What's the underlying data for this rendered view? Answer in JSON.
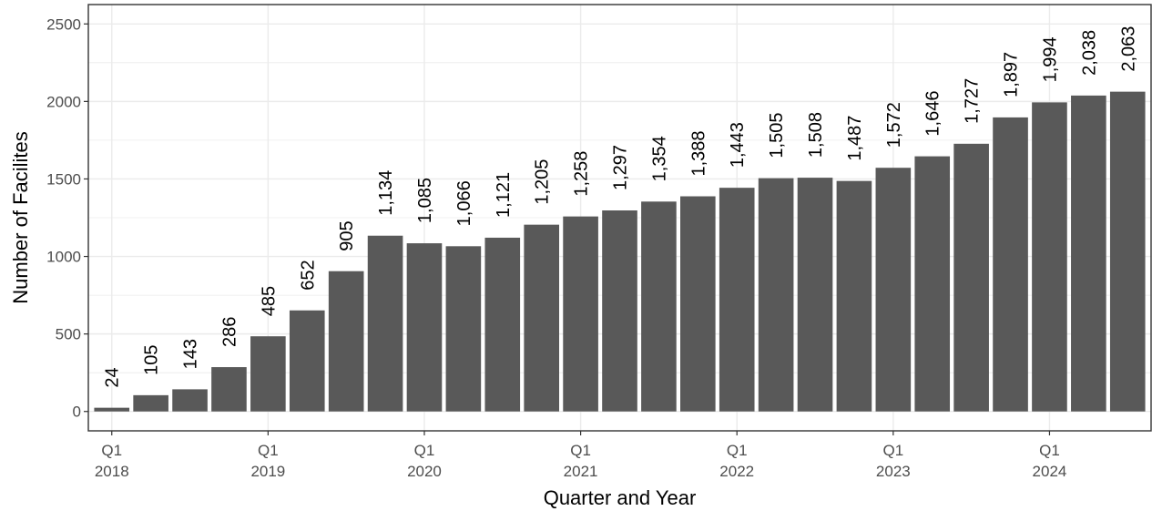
{
  "chart_data": {
    "type": "bar",
    "categories": [
      "Q1 2018",
      "Q2 2018",
      "Q3 2018",
      "Q4 2018",
      "Q1 2019",
      "Q2 2019",
      "Q3 2019",
      "Q4 2019",
      "Q1 2020",
      "Q2 2020",
      "Q3 2020",
      "Q4 2020",
      "Q1 2021",
      "Q2 2021",
      "Q3 2021",
      "Q4 2021",
      "Q1 2022",
      "Q2 2022",
      "Q3 2022",
      "Q4 2022",
      "Q1 2023",
      "Q2 2023",
      "Q3 2023",
      "Q4 2023",
      "Q1 2024",
      "Q2 2024",
      "Q3 2024"
    ],
    "values": [
      24,
      105,
      143,
      286,
      485,
      652,
      905,
      1134,
      1085,
      1066,
      1121,
      1205,
      1258,
      1297,
      1354,
      1388,
      1443,
      1505,
      1508,
      1487,
      1572,
      1646,
      1727,
      1897,
      1994,
      2038,
      2063
    ],
    "value_labels": [
      "24",
      "105",
      "143",
      "286",
      "485",
      "652",
      "905",
      "1,134",
      "1,085",
      "1,066",
      "1,121",
      "1,205",
      "1,258",
      "1,297",
      "1,354",
      "1,388",
      "1,443",
      "1,505",
      "1,508",
      "1,487",
      "1,572",
      "1,646",
      "1,727",
      "1,897",
      "1,994",
      "2,038",
      "2,063"
    ],
    "x_tick_labels": [
      {
        "index": 0,
        "line1": "Q1",
        "line2": "2018"
      },
      {
        "index": 4,
        "line1": "Q1",
        "line2": "2019"
      },
      {
        "index": 8,
        "line1": "Q1",
        "line2": "2020"
      },
      {
        "index": 12,
        "line1": "Q1",
        "line2": "2021"
      },
      {
        "index": 16,
        "line1": "Q1",
        "line2": "2022"
      },
      {
        "index": 20,
        "line1": "Q1",
        "line2": "2023"
      },
      {
        "index": 24,
        "line1": "Q1",
        "line2": "2024"
      }
    ],
    "y_ticks": [
      0,
      500,
      1000,
      1500,
      2000,
      2500
    ],
    "title": "",
    "xlabel": "Quarter and Year",
    "ylabel": "Number of Facilites",
    "ylim": [
      -125,
      2625
    ],
    "grid": true,
    "bar_color": "#595959",
    "grid_color": "#ebebeb",
    "panel_border_color": "#333333"
  }
}
